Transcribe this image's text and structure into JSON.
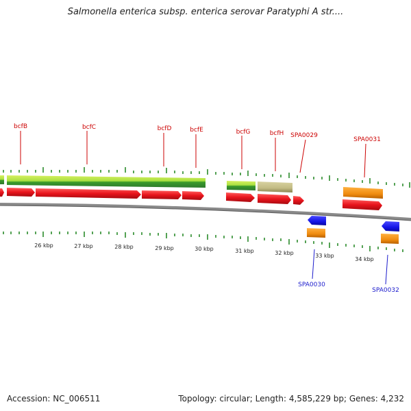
{
  "title": "Salmonella enterica subsp. enterica serovar Paratyphi A str....",
  "footer": {
    "accession": "Accession: NC_006511",
    "summary": "Topology: circular; Length: 4,585,229 bp; Genes: 4,232"
  },
  "colors": {
    "forward_gene": "#e8141c",
    "orange_feature": "#f08c10",
    "blue_gene": "#1414e6",
    "green_light": "#a8e040",
    "green_dark": "#2e8a2e",
    "khaki": "#c2bb84",
    "backbone": "#8a8a8a",
    "tick": "#2a8a2a",
    "top_label": "#cc0000",
    "bottom_label": "#1a1acc"
  },
  "scale_labels": [
    "26 kbp",
    "27 kbp",
    "28 kbp",
    "29 kbp",
    "30 kbp",
    "31 kbp",
    "32 kbp",
    "33 kbp",
    "34 kbp"
  ],
  "top_labels": [
    "bcfB",
    "bcfC",
    "bcfD",
    "bcfE",
    "bcfG",
    "bcfH",
    "SPA0029",
    "SPA0031"
  ],
  "bottom_labels": [
    "SPA0030",
    "SPA0032"
  ]
}
